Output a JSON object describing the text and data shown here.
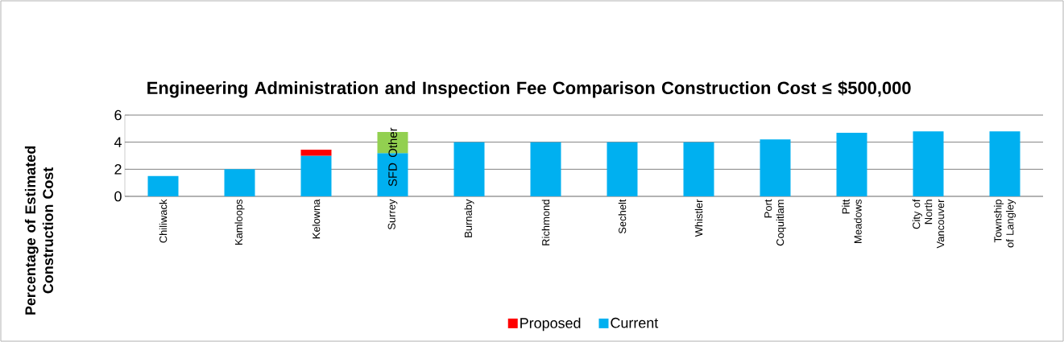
{
  "chart_data": {
    "type": "bar",
    "stacked": true,
    "title": "Engineering Administration and Inspection Fee Comparison Construction Cost ≤ $500,000",
    "ylabel": "Percentage of Estimated Construction Cost",
    "categories": [
      "Chiliwack",
      "Kamloops",
      "Kelowna",
      "Surrey",
      "Burnaby",
      "Richmond",
      "Sechelt",
      "Whistler",
      "Port Coquitlam",
      "Pitt Meadows",
      "City of North Vancouver",
      "Township of Langley"
    ],
    "series": [
      {
        "name": "Current",
        "color": "#00b0f0",
        "values": [
          1.5,
          2,
          3,
          3.2,
          4,
          4,
          4,
          4,
          4.2,
          4.7,
          4.8,
          4.8
        ]
      },
      {
        "name": "Proposed",
        "color": "#ff0000",
        "values": [
          null,
          null,
          0.45,
          null,
          null,
          null,
          null,
          null,
          null,
          null,
          null,
          null
        ]
      },
      {
        "color": "#92d050",
        "values": [
          null,
          null,
          null,
          1.55,
          null,
          null,
          null,
          null,
          null,
          null,
          null,
          null
        ]
      }
    ],
    "annotations": [
      "SFD",
      "Other"
    ],
    "ylim": [
      0,
      6
    ],
    "yticks": [
      0,
      2,
      4,
      6
    ],
    "grid": "y",
    "legend": "bottom"
  }
}
